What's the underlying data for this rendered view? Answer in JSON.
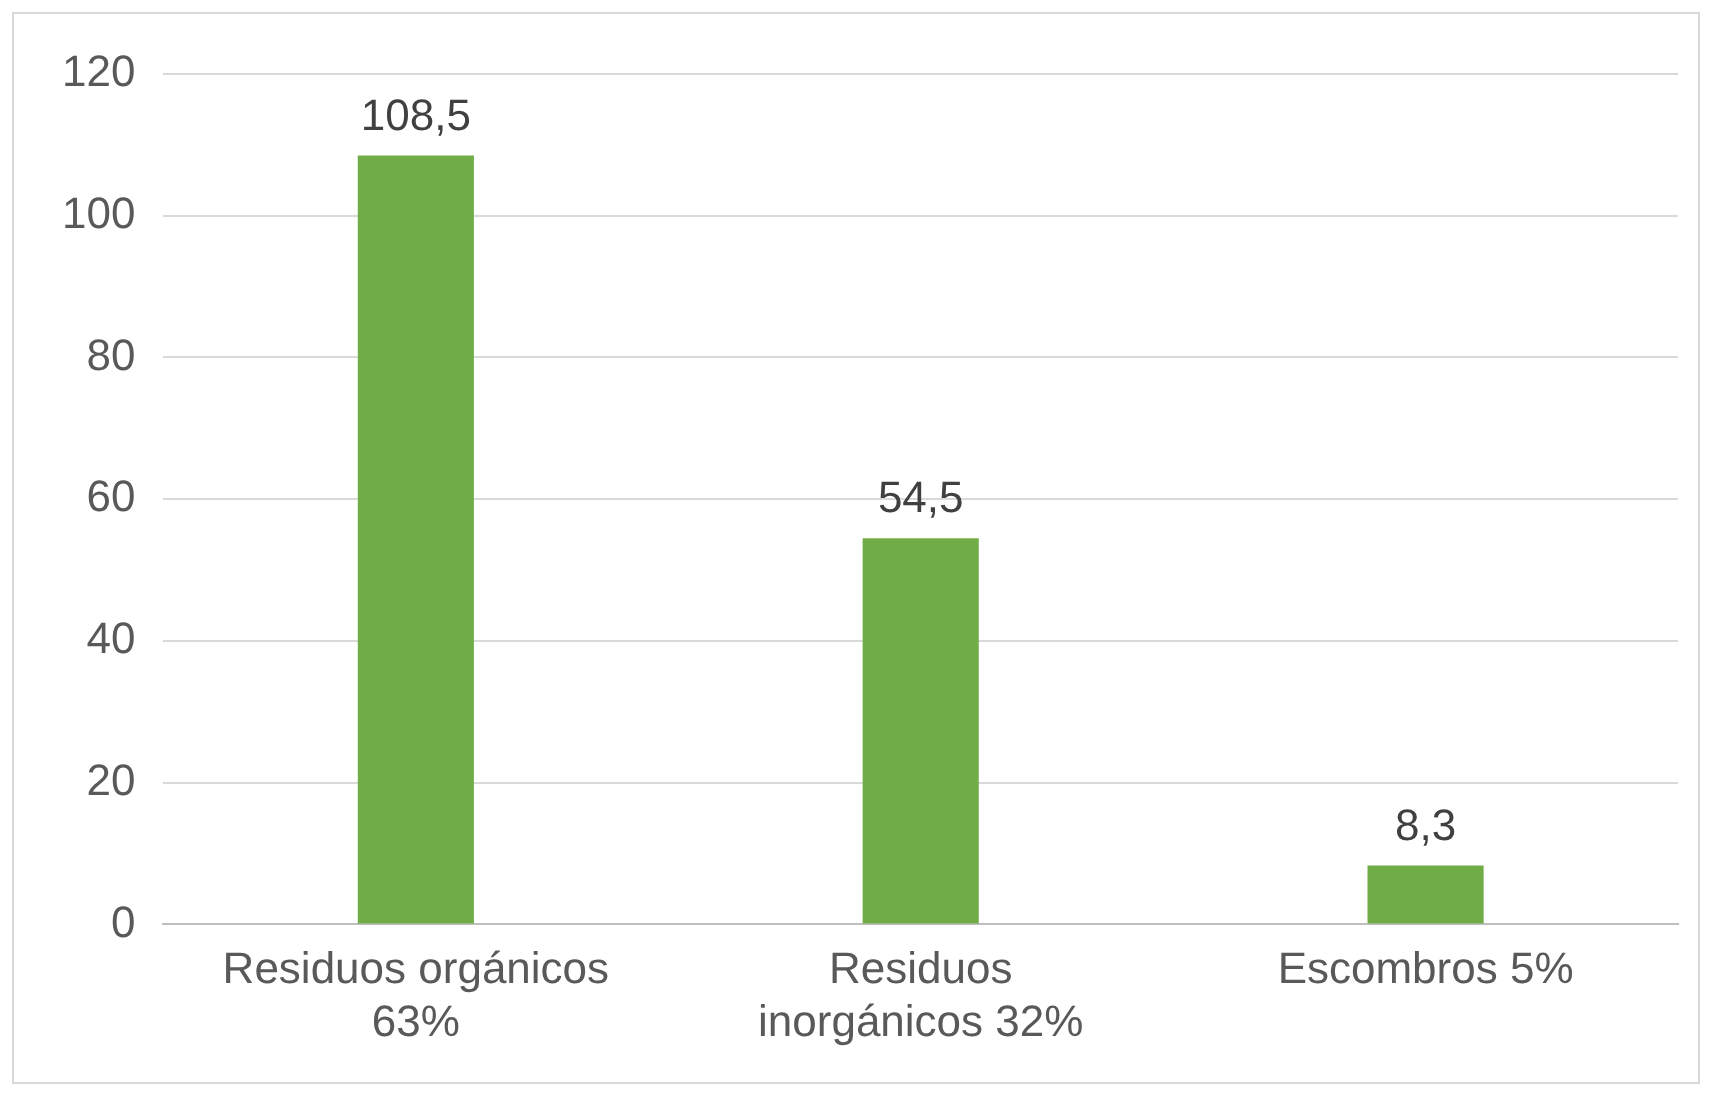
{
  "chart_data": {
    "type": "bar",
    "categories": [
      "Residuos orgánicos 63%",
      "Residuos inorgánicos 32%",
      "Escombros 5%"
    ],
    "values": [
      108.5,
      54.5,
      8.3
    ],
    "color": "#70ad47",
    "value_labels": [
      "108,5",
      "54,5",
      "8,3"
    ],
    "ylim": [
      0,
      120
    ],
    "yticks": [
      0,
      20,
      40,
      60,
      80,
      100,
      120
    ],
    "grid": "y",
    "legend": false
  }
}
